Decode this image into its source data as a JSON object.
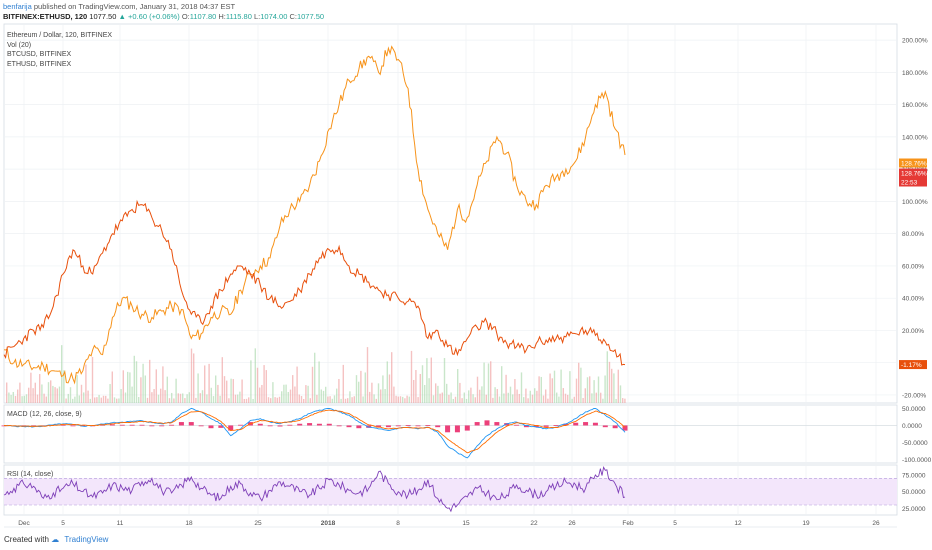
{
  "header": {
    "user": "benfarija",
    "published": "published on TradingView.com, January 31, 2018 04:37 EST",
    "symbol": "BITFINEX:ETHUSD, 120",
    "price": "1077.50",
    "change": "▲ +0.60 (+0.06%)",
    "o_label": "O:",
    "o_value": "1107.80",
    "h_label": "H:",
    "h_value": "1115.80",
    "l_label": "L:",
    "l_value": "1074.00",
    "c_label": "C:",
    "c_value": "1077.50"
  },
  "legend": {
    "main": "Ethereum / Dollar, 120, BITFINEX",
    "vol": "Vol (20)",
    "btc": "BTCUSD, BITFINEX",
    "eth": "ETHUSD, BITFINEX"
  },
  "macd_label": "MACD (12, 26, close, 9)",
  "rsi_label": "RSI (14, close)",
  "footer": {
    "created": "Created with",
    "brand": "TradingView"
  },
  "colors": {
    "eth": "#f7931a",
    "btc": "#e8500c",
    "macd": "#2196f3",
    "signal": "#ff6d00",
    "hist": "#e91e63",
    "rsi": "#7e3fb8",
    "rsi_band": "#f3e6fb"
  },
  "chart_data": [
    {
      "type": "line",
      "title": "Ethereum / Dollar, 120, BITFINEX",
      "ylim": [
        -25,
        210
      ],
      "y_unit": "%",
      "y_ticks": [
        "200.00%",
        "180.00%",
        "160.00%",
        "140.00%",
        "120.00%",
        "100.00%",
        "80.00%",
        "60.00%",
        "40.00%",
        "20.00%",
        "0.00%",
        "-20.00%"
      ],
      "x_ticks": [
        "Dec",
        "5",
        "11",
        "18",
        "25",
        "2018",
        "8",
        "15",
        "22",
        "26",
        "Feb",
        "5",
        "12",
        "19",
        "26"
      ],
      "x": [
        0,
        1,
        2,
        3,
        4,
        5,
        6,
        7,
        8,
        9,
        10,
        11,
        12,
        13,
        14,
        15,
        16,
        17,
        18,
        19,
        20,
        21,
        22,
        23,
        24,
        25,
        26,
        27,
        28,
        29,
        30,
        31,
        32,
        33,
        34,
        35,
        36,
        37,
        38,
        39,
        40,
        41,
        42,
        43,
        44,
        45,
        46,
        47,
        48,
        49,
        50,
        51,
        52,
        53,
        54,
        55,
        56,
        57,
        58,
        59,
        60,
        61,
        62,
        63
      ],
      "series": [
        {
          "name": "ETHUSD, BITFINEX",
          "values": [
            8,
            0,
            -1,
            -3,
            -2,
            -5,
            -8,
            -10,
            -5,
            8,
            5,
            28,
            40,
            35,
            30,
            28,
            32,
            35,
            33,
            15,
            18,
            28,
            32,
            30,
            45,
            55,
            60,
            65,
            85,
            95,
            100,
            110,
            125,
            145,
            160,
            175,
            182,
            190,
            180,
            195,
            188,
            170,
            120,
            95,
            80,
            70,
            95,
            90,
            110,
            125,
            140,
            130,
            110,
            100,
            98,
            110,
            115,
            120,
            125,
            140,
            160,
            168,
            145,
            128.76
          ]
        },
        {
          "name": "BTCUSD, BITFINEX",
          "values": [
            5,
            10,
            15,
            20,
            22,
            35,
            55,
            70,
            60,
            55,
            68,
            80,
            88,
            95,
            98,
            90,
            82,
            70,
            45,
            30,
            25,
            35,
            45,
            55,
            60,
            55,
            48,
            40,
            35,
            38,
            45,
            55,
            65,
            70,
            72,
            60,
            55,
            50,
            45,
            42,
            40,
            38,
            35,
            15,
            20,
            10,
            5,
            15,
            22,
            25,
            18,
            12,
            10,
            8,
            12,
            14,
            15,
            16,
            18,
            20,
            17,
            13,
            8,
            -1.17
          ]
        }
      ],
      "value_labels": [
        "128.76%",
        "128.76%",
        "22:53",
        "-1.17%"
      ]
    },
    {
      "type": "line",
      "title": "MACD (12, 26, close, 9)",
      "y_ticks": [
        "50.0000",
        "0.0000",
        "-50.0000",
        "-100.0000"
      ],
      "ylim": [
        -110,
        60
      ],
      "series": [
        {
          "name": "MACD",
          "values": [
            0,
            -2,
            -3,
            -4,
            -2,
            2,
            5,
            3,
            -2,
            0,
            4,
            8,
            10,
            12,
            14,
            8,
            5,
            10,
            35,
            50,
            40,
            20,
            5,
            -30,
            -10,
            15,
            20,
            10,
            5,
            12,
            20,
            35,
            45,
            50,
            40,
            30,
            10,
            -5,
            -10,
            -15,
            -8,
            -5,
            -10,
            -5,
            -20,
            -60,
            -80,
            -95,
            -60,
            -30,
            -10,
            5,
            10,
            0,
            -5,
            -10,
            -5,
            5,
            20,
            40,
            50,
            30,
            10,
            -20
          ]
        },
        {
          "name": "Signal",
          "values": [
            0,
            -1,
            -2,
            -3,
            -2,
            0,
            3,
            3,
            1,
            0,
            2,
            5,
            8,
            10,
            12,
            10,
            7,
            8,
            25,
            40,
            40,
            28,
            12,
            -15,
            -12,
            5,
            15,
            12,
            8,
            10,
            15,
            28,
            40,
            45,
            42,
            35,
            18,
            2,
            -5,
            -10,
            -8,
            -6,
            -8,
            -6,
            -15,
            -40,
            -60,
            -80,
            -70,
            -45,
            -20,
            -2,
            8,
            5,
            0,
            -6,
            -6,
            0,
            12,
            30,
            42,
            35,
            18,
            -5
          ]
        }
      ]
    },
    {
      "type": "line",
      "title": "RSI (14, close)",
      "y_ticks": [
        "75.0000",
        "50.0000",
        "25.0000"
      ],
      "ylim": [
        15,
        90
      ],
      "series": [
        {
          "name": "RSI",
          "values": [
            45,
            55,
            62,
            58,
            40,
            48,
            55,
            62,
            50,
            42,
            48,
            60,
            55,
            52,
            65,
            70,
            52,
            48,
            60,
            72,
            55,
            45,
            40,
            58,
            62,
            48,
            40,
            52,
            65,
            58,
            50,
            45,
            55,
            68,
            60,
            52,
            48,
            55,
            80,
            62,
            50,
            45,
            52,
            68,
            40,
            25,
            30,
            42,
            55,
            48,
            38,
            45,
            60,
            52,
            45,
            50,
            58,
            65,
            60,
            55,
            75,
            82,
            62,
            42
          ]
        }
      ],
      "bands": [
        70,
        30
      ]
    }
  ]
}
